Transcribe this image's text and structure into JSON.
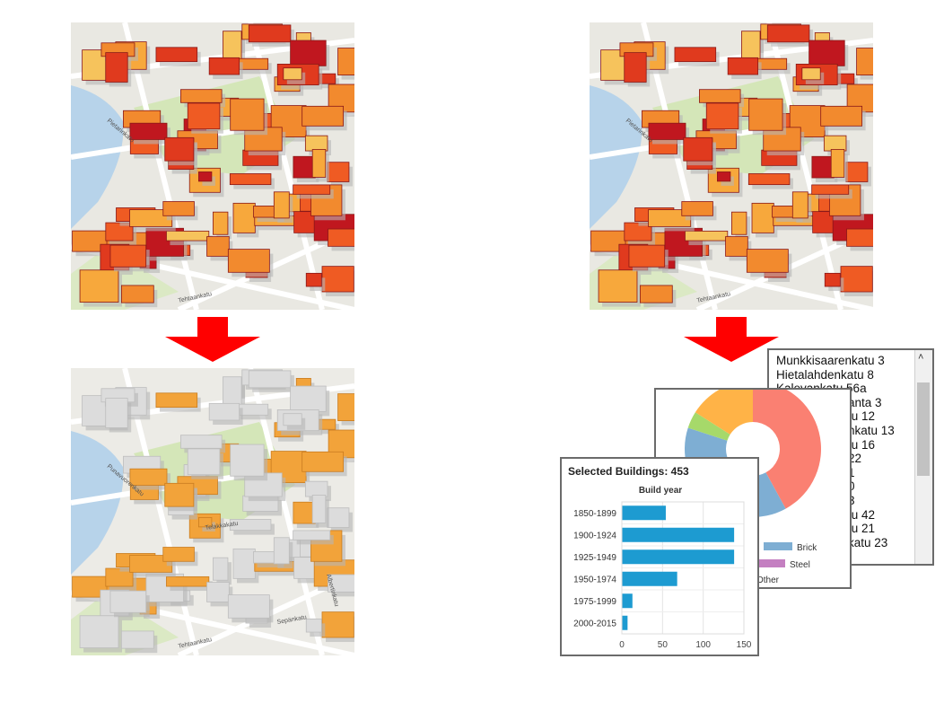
{
  "maps": [
    {
      "id": "top-left",
      "style": "all-buildings",
      "labels": [
        "Tehtaankatu",
        "Pietarinkatu"
      ]
    },
    {
      "id": "bottom-left",
      "style": "filtered-buildings",
      "labels": [
        "Tehtaankatu",
        "Punavuorenkatu",
        "Telakkakatu",
        "Sepänkatu",
        "Albertinkatu"
      ]
    },
    {
      "id": "top-right",
      "style": "all-buildings",
      "labels": [
        "Tehtaankatu",
        "Pietarinkatu"
      ]
    }
  ],
  "colors": {
    "arrow": "#ff0000",
    "bar": "#1d9bd1",
    "brick": "#7eaed3",
    "steel": "#c47fc1",
    "pie_red": "#fa8072",
    "pie_blue": "#7eaed3",
    "pie_orange": "#ffb347",
    "pie_green": "#a6d96a"
  },
  "list": {
    "items": [
      "Munkkisaarenkatu 3",
      "Hietalahdenkatu 8",
      "Kalevankatu 56a",
      "anta 3",
      "tu 12",
      "nkatu 13",
      "tu 16",
      "22",
      "1",
      "0",
      "3",
      "tu 42",
      "tu 21",
      "katu 23"
    ]
  },
  "pie": {
    "legend": [
      "Brick",
      "Steel",
      "Other"
    ]
  },
  "bar_panel": {
    "title": "Selected Buildings: 453"
  },
  "chart_data": {
    "type": "bar",
    "orientation": "horizontal",
    "title": "Build year",
    "categories": [
      "1850-1899",
      "1900-1924",
      "1925-1949",
      "1950-1974",
      "1975-1999",
      "2000-2015"
    ],
    "values": [
      54,
      138,
      138,
      68,
      13,
      7
    ],
    "xlim": [
      0,
      150
    ],
    "xticks": [
      "0",
      "50",
      "100",
      "150"
    ],
    "grid": true
  }
}
